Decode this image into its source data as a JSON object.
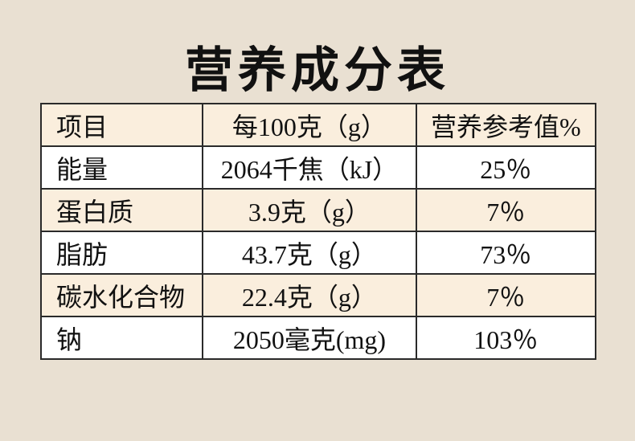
{
  "header": {
    "title": "营养成分表"
  },
  "table": {
    "columns": [
      "项目",
      "每100克（g）",
      "营养参考值%"
    ],
    "rows": [
      [
        "能量",
        "2064千焦（kJ）",
        "25％"
      ],
      [
        "蛋白质",
        "3.9克（g）",
        "7％"
      ],
      [
        "脂肪",
        "43.7克（g）",
        "73％"
      ],
      [
        "碳水化合物",
        "22.4克（g）",
        "7％"
      ],
      [
        "钠",
        "2050毫克(mg)",
        "103％"
      ]
    ]
  }
}
